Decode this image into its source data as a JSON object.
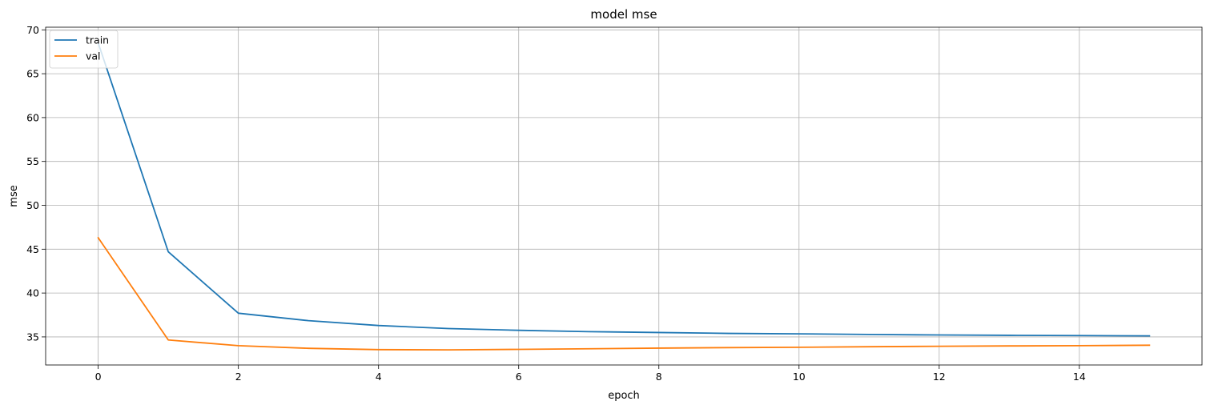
{
  "chart_data": {
    "type": "line",
    "title": "model mse",
    "xlabel": "epoch",
    "ylabel": "mse",
    "x": [
      0,
      1,
      2,
      3,
      4,
      5,
      6,
      7,
      8,
      9,
      10,
      11,
      12,
      13,
      14,
      15
    ],
    "series": [
      {
        "name": "train",
        "color": "#1f77b4",
        "values": [
          68.5,
          44.7,
          37.7,
          36.85,
          36.3,
          35.95,
          35.75,
          35.6,
          35.5,
          35.4,
          35.35,
          35.28,
          35.22,
          35.18,
          35.15,
          35.12
        ]
      },
      {
        "name": "val",
        "color": "#ff7f0e",
        "values": [
          46.3,
          34.65,
          34.0,
          33.7,
          33.55,
          33.52,
          33.58,
          33.65,
          33.72,
          33.78,
          33.82,
          33.88,
          33.93,
          33.97,
          34.0,
          34.05
        ]
      }
    ],
    "xlim": [
      -0.75,
      15.75
    ],
    "ylim": [
      31.8,
      70.3
    ],
    "x_ticks": [
      0,
      2,
      4,
      6,
      8,
      10,
      12,
      14
    ],
    "y_ticks": [
      35,
      40,
      45,
      50,
      55,
      60,
      65,
      70
    ],
    "grid": true,
    "legend_position": "top-left"
  }
}
